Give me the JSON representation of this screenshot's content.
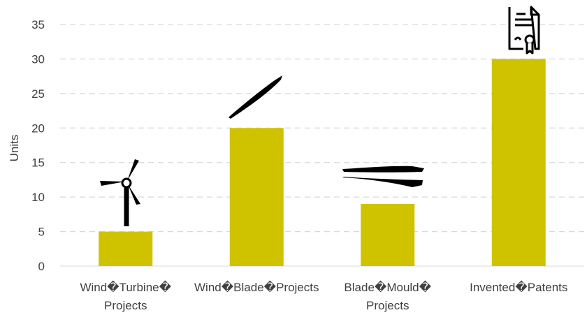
{
  "chart_data": {
    "type": "bar",
    "categories": [
      [
        "Wind�Turbine�",
        "Projects"
      ],
      [
        "Wind�Blade�Projects"
      ],
      [
        "Blade�Mould�",
        "Projects"
      ],
      [
        "Invented�Patents"
      ]
    ],
    "values": [
      5,
      20,
      9,
      30
    ],
    "ylabel": "Units",
    "ylim": [
      0,
      35
    ],
    "yticks": [
      0,
      5,
      10,
      15,
      20,
      25,
      30,
      35
    ],
    "grid": true,
    "legend": "none",
    "colors": {
      "bar": "#cfc300",
      "icon": "#000000",
      "grid": "#d9d9d9",
      "text": "#404040"
    },
    "icons": [
      "wind-turbine-icon",
      "turbine-blade-icon",
      "blade-mould-icon",
      "patent-certificate-icon"
    ]
  }
}
